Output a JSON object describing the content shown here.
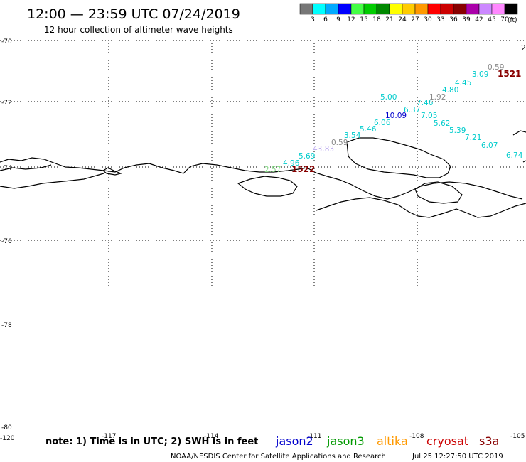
{
  "header": {
    "title": "12:00 — 23:59 UTC 07/24/2019",
    "subtitle": "12 hour collection of altimeter wave heights"
  },
  "colorbar": {
    "unit": "(ft)",
    "colors": [
      "#777777",
      "#00ffff",
      "#00aaff",
      "#0000ff",
      "#44ff44",
      "#00cc00",
      "#008800",
      "#ffff00",
      "#ffcc00",
      "#ff9900",
      "#ff0000",
      "#cc0000",
      "#880000",
      "#aa00aa",
      "#cc88ff",
      "#ff88ff",
      "#000000"
    ],
    "labels": [
      "3",
      "6",
      "9",
      "12",
      "15",
      "18",
      "21",
      "24",
      "27",
      "30",
      "33",
      "36",
      "39",
      "42",
      "45",
      "70"
    ]
  },
  "axes": {
    "lat_labels": [
      "-70",
      "-72",
      "-74",
      "-76",
      "-78",
      "-80"
    ],
    "lon_labels": [
      "-120",
      "-117",
      "-114",
      "-111",
      "-108",
      "-105"
    ]
  },
  "edge_label": "2",
  "measurements": [
    {
      "text": "0.59",
      "color": "#888888"
    },
    {
      "text": "3.09",
      "color": "#00cccc"
    },
    {
      "text": "1521",
      "color": "#880000"
    },
    {
      "text": "4.45",
      "color": "#00cccc"
    },
    {
      "text": "4.80",
      "color": "#00cccc"
    },
    {
      "text": "1.92",
      "color": "#888888"
    },
    {
      "text": "5.00",
      "color": "#00cccc"
    },
    {
      "text": "7.46",
      "color": "#00cccc"
    },
    {
      "text": "6.37",
      "color": "#00cccc"
    },
    {
      "text": "10.09",
      "color": "#0000cc"
    },
    {
      "text": "7.05",
      "color": "#00cccc"
    },
    {
      "text": "6.06",
      "color": "#00cccc"
    },
    {
      "text": "5.62",
      "color": "#00cccc"
    },
    {
      "text": "5.46",
      "color": "#00cccc"
    },
    {
      "text": "5.39",
      "color": "#00cccc"
    },
    {
      "text": "3.54",
      "color": "#00cccc"
    },
    {
      "text": "7.21",
      "color": "#00cccc"
    },
    {
      "text": "0.59",
      "color": "#888888"
    },
    {
      "text": "6.07",
      "color": "#00cccc"
    },
    {
      "text": "43.83",
      "color": "#bbaaee"
    },
    {
      "text": "5.69",
      "color": "#00cccc"
    },
    {
      "text": "6.74",
      "color": "#00cccc"
    },
    {
      "text": "4.96",
      "color": "#00cccc"
    },
    {
      "text": "2.57",
      "color": "#88dd88"
    },
    {
      "text": "1522",
      "color": "#880000"
    }
  ],
  "footer": {
    "note": "note: 1) Time is in UTC; 2) SWH is in feet",
    "credit": "NOAA/NESDIS Center for Satellite Applications and Research",
    "timestamp": "Jul 25 12:27:50 UTC 2019"
  },
  "legend": [
    {
      "name": "jason2",
      "color": "#0000cc"
    },
    {
      "name": "jason3",
      "color": "#009900"
    },
    {
      "name": "altika",
      "color": "#ff9900"
    },
    {
      "name": "cryosat",
      "color": "#cc0000"
    },
    {
      "name": "s3a",
      "color": "#880000"
    }
  ]
}
